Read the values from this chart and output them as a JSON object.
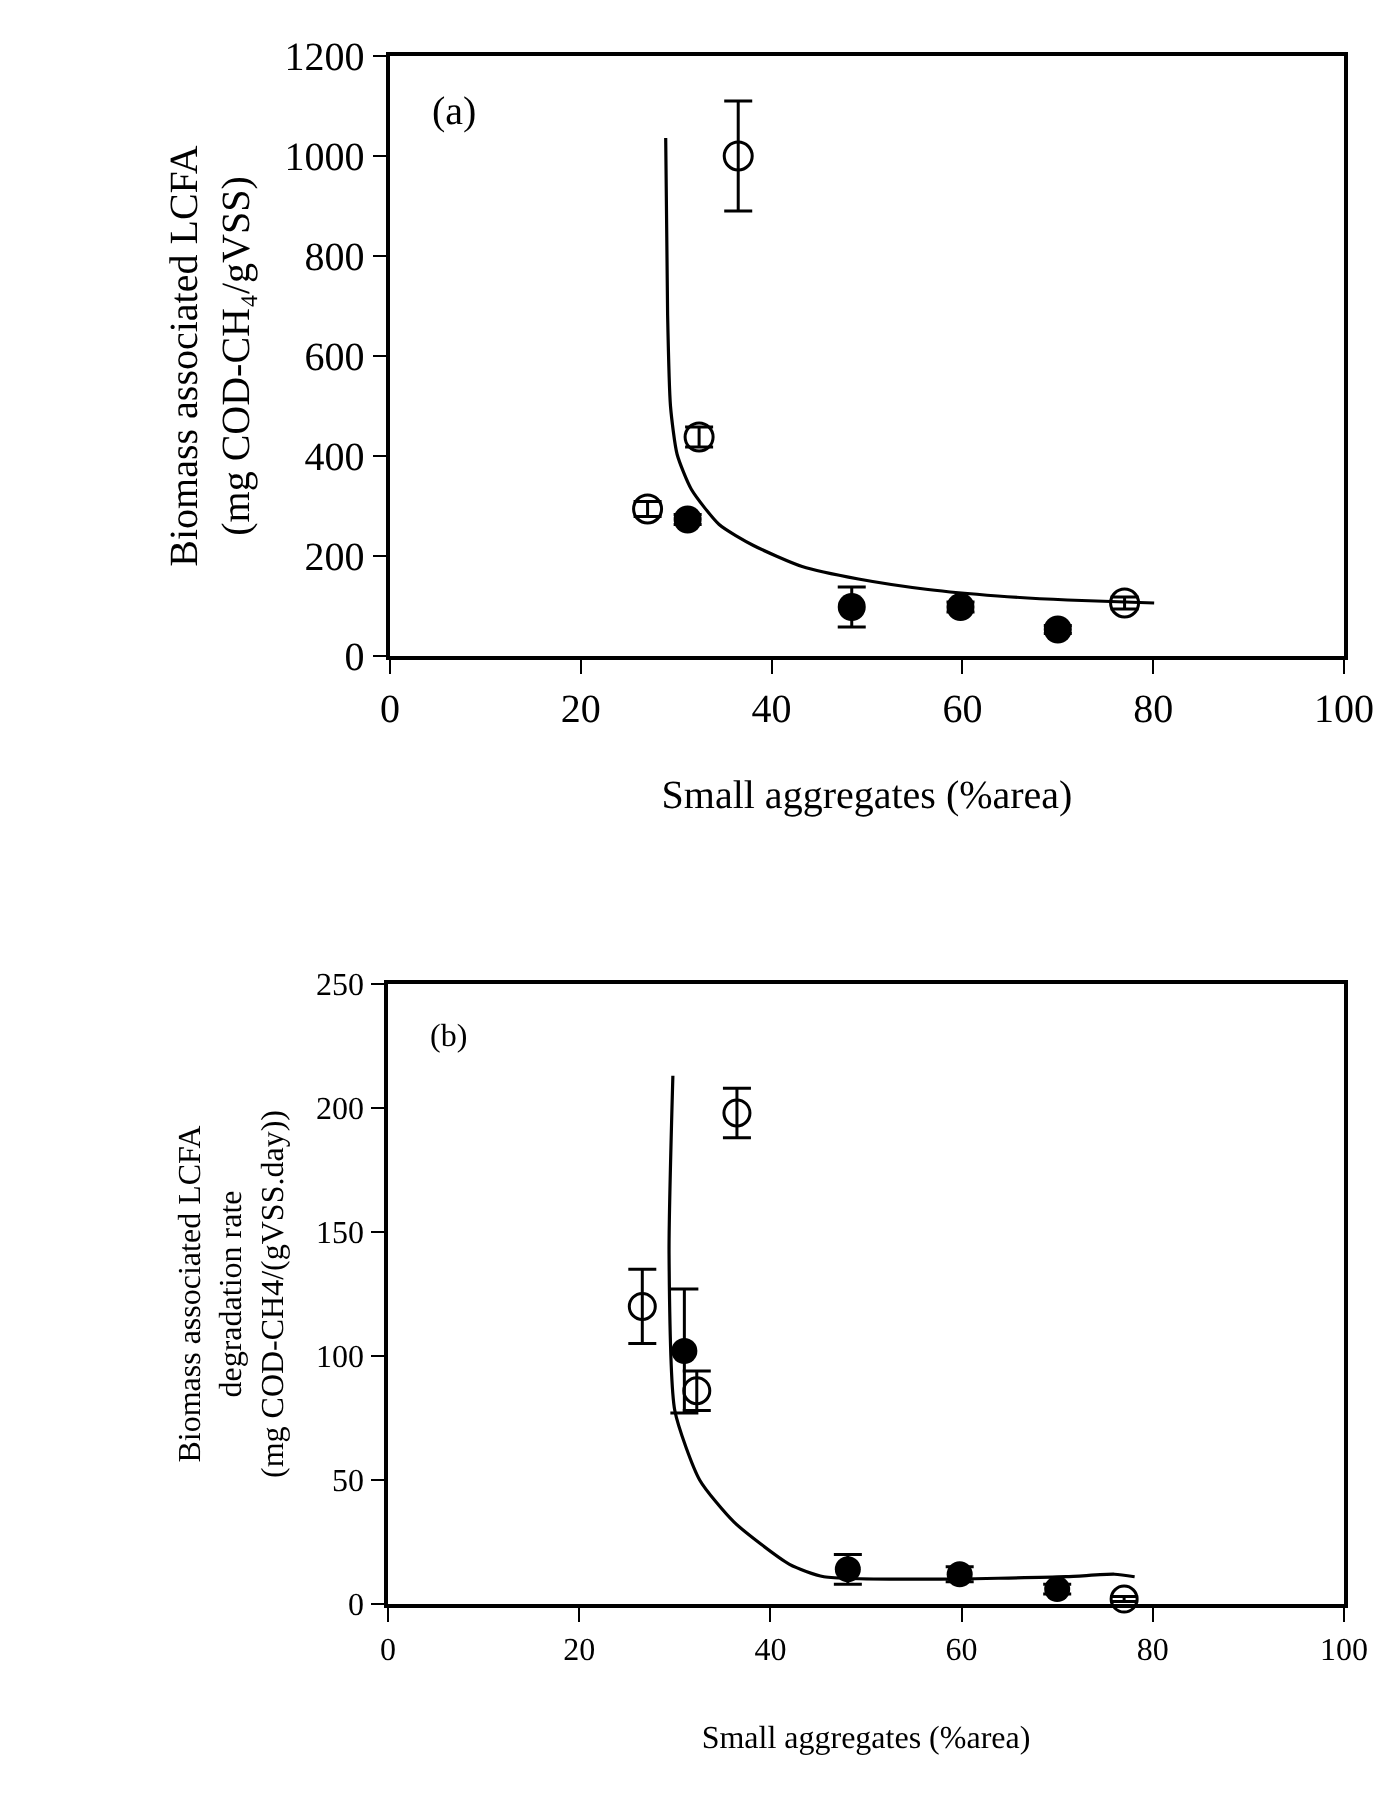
{
  "chart_data": [
    {
      "type": "scatter",
      "xlabel": "Small aggregates (%area)",
      "ylabel": "Biomass associated LCFA\n(mg COD-CH₄/gVSS)",
      "annotations": [
        "(a)"
      ],
      "xlim": [
        0,
        100
      ],
      "xticks": [
        0,
        20,
        40,
        60,
        80,
        100
      ],
      "ylim": [
        0,
        1200
      ],
      "yticks": [
        0,
        200,
        400,
        600,
        800,
        1000,
        1200
      ],
      "series": [
        {
          "marker": "circle-open",
          "color": "#000000",
          "x": [
            27.0,
            32.4,
            36.5,
            77.0
          ],
          "values": [
            294,
            438,
            1000,
            106
          ],
          "errors": [
            15,
            20,
            110,
            12
          ]
        },
        {
          "marker": "circle",
          "color": "#000000",
          "x": [
            31.2,
            48.4,
            59.8,
            70.0
          ],
          "values": [
            273,
            98,
            98,
            53
          ],
          "errors": [
            10,
            40,
            10,
            8
          ]
        },
        {
          "type": "line",
          "marker": "none",
          "line_style": "solid",
          "color": "#000000",
          "x": [
            28.9,
            29.1,
            29.4,
            30.1,
            31.6,
            34.5,
            38.1,
            43.2,
            49.1,
            56.4,
            63.7,
            71.0,
            80.1
          ],
          "values": [
            1036,
            682,
            500,
            403,
            333,
            263,
            221,
            179,
            154,
            133,
            120,
            112,
            106
          ]
        }
      ]
    },
    {
      "type": "scatter",
      "xlabel": "Small aggregates (%area)",
      "ylabel": "Biomass associated LCFA\ndegradation rate\n(mg COD-CH4/(gVSS.day))",
      "annotations": [
        "(b)"
      ],
      "xlim": [
        0,
        100
      ],
      "xticks": [
        0,
        20,
        40,
        60,
        80,
        100
      ],
      "ylim": [
        0,
        250
      ],
      "yticks": [
        0,
        50,
        100,
        150,
        200,
        250
      ],
      "series": [
        {
          "marker": "circle-open",
          "color": "#000000",
          "x": [
            26.6,
            32.3,
            36.5,
            77.0
          ],
          "values": [
            120,
            86,
            198,
            2
          ],
          "errors": [
            15,
            8,
            10,
            1
          ]
        },
        {
          "marker": "circle",
          "color": "#000000",
          "x": [
            31.0,
            48.1,
            59.8,
            70.0
          ],
          "values": [
            102,
            14,
            12,
            6
          ],
          "errors": [
            25,
            6,
            3,
            2
          ]
        },
        {
          "type": "line",
          "marker": "none",
          "line_style": "solid",
          "color": "#000000",
          "x": [
            29.8,
            29.4,
            30.0,
            32.6,
            36.2,
            42.0,
            45.6,
            56.4,
            70.9,
            76.0,
            78.1
          ],
          "values": [
            213,
            141,
            78,
            50,
            33,
            16,
            11,
            10,
            11,
            12,
            11
          ]
        }
      ]
    }
  ]
}
